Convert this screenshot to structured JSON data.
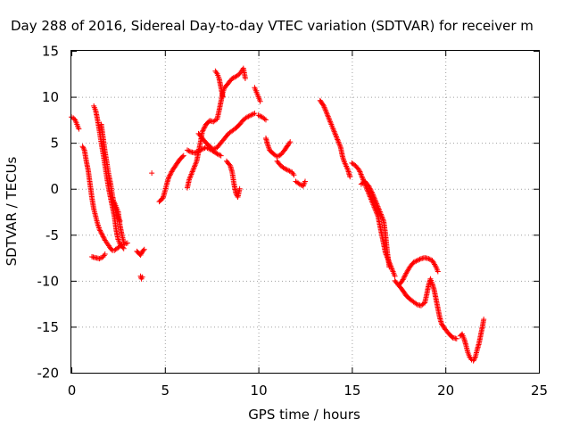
{
  "chart_data": {
    "type": "scatter",
    "title": "Day 288 of 2016, Sidereal Day-to-day VTEC variation (SDTVAR) for receiver m",
    "xlabel": "GPS time / hours",
    "ylabel": "SDTVAR / TECUs",
    "xlim": [
      0,
      25
    ],
    "ylim": [
      -20,
      15
    ],
    "xticks": [
      "0",
      "5",
      "10",
      "15",
      "20",
      "25"
    ],
    "yticks": [
      "15",
      "10",
      "5",
      "0",
      "-5",
      "-10",
      "-15",
      "-20"
    ],
    "grid": true,
    "marker": "+",
    "colors": {
      "series": "#ff0000",
      "grid": "#a0a0a0",
      "axis": "#000000"
    },
    "series_tracks": [
      [
        [
          0.0,
          7.8
        ],
        [
          0.1,
          7.7
        ],
        [
          0.2,
          7.5
        ],
        [
          0.3,
          7.0
        ],
        [
          0.4,
          6.5
        ]
      ],
      [
        [
          0.6,
          4.6
        ],
        [
          0.7,
          4.2
        ],
        [
          0.8,
          3.0
        ],
        [
          0.9,
          2.0
        ],
        [
          1.0,
          0.5
        ],
        [
          1.1,
          -1.0
        ],
        [
          1.2,
          -2.2
        ],
        [
          1.3,
          -3.0
        ],
        [
          1.4,
          -3.8
        ],
        [
          1.5,
          -4.4
        ],
        [
          1.6,
          -4.8
        ],
        [
          1.7,
          -5.2
        ],
        [
          1.8,
          -5.6
        ],
        [
          1.9,
          -5.9
        ],
        [
          2.0,
          -6.2
        ],
        [
          2.1,
          -6.5
        ],
        [
          2.2,
          -6.7
        ],
        [
          2.3,
          -6.7
        ],
        [
          2.5,
          -6.4
        ],
        [
          2.7,
          -6.1
        ],
        [
          3.0,
          -5.9
        ]
      ],
      [
        [
          1.2,
          9.0
        ],
        [
          1.3,
          8.5
        ],
        [
          1.4,
          7.5
        ],
        [
          1.5,
          6.3
        ],
        [
          1.6,
          5.0
        ],
        [
          1.7,
          3.8
        ],
        [
          1.8,
          2.5
        ],
        [
          1.9,
          1.2
        ],
        [
          2.0,
          0.0
        ],
        [
          2.1,
          -1.0
        ],
        [
          2.2,
          -2.0
        ],
        [
          2.3,
          -3.0
        ],
        [
          2.4,
          -4.5
        ],
        [
          2.5,
          -5.5
        ],
        [
          2.6,
          -6.0
        ],
        [
          2.8,
          -6.5
        ]
      ],
      [
        [
          1.1,
          -7.4
        ],
        [
          1.3,
          -7.5
        ],
        [
          1.5,
          -7.6
        ],
        [
          1.7,
          -7.4
        ],
        [
          1.8,
          -7.1
        ]
      ],
      [
        [
          1.6,
          7.0
        ],
        [
          1.7,
          5.5
        ],
        [
          1.8,
          4.0
        ],
        [
          1.9,
          2.8
        ],
        [
          2.0,
          1.5
        ],
        [
          2.1,
          0.5
        ],
        [
          2.2,
          -0.8
        ],
        [
          2.3,
          -1.8
        ],
        [
          2.4,
          -2.6
        ],
        [
          2.5,
          -3.2
        ],
        [
          2.6,
          -3.5
        ]
      ],
      [
        [
          2.3,
          -1.5
        ],
        [
          2.4,
          -2.0
        ],
        [
          2.5,
          -2.5
        ],
        [
          2.6,
          -4.0
        ],
        [
          2.7,
          -5.0
        ],
        [
          2.8,
          -5.8
        ]
      ],
      [
        [
          3.5,
          -6.8
        ],
        [
          3.6,
          -7.0
        ],
        [
          3.7,
          -7.2
        ],
        [
          3.8,
          -6.8
        ],
        [
          3.9,
          -6.6
        ]
      ],
      [
        [
          3.7,
          -9.5
        ],
        [
          3.75,
          -9.8
        ],
        [
          3.8,
          -9.6
        ]
      ],
      [
        [
          4.3,
          1.7
        ]
      ],
      [
        [
          4.7,
          -1.4
        ],
        [
          4.9,
          -1.0
        ],
        [
          5.0,
          -0.3
        ],
        [
          5.1,
          0.5
        ],
        [
          5.2,
          1.2
        ],
        [
          5.4,
          2.0
        ],
        [
          5.6,
          2.6
        ],
        [
          5.8,
          3.2
        ],
        [
          6.0,
          3.6
        ]
      ],
      [
        [
          6.2,
          4.2
        ],
        [
          6.4,
          4.0
        ],
        [
          6.6,
          3.9
        ],
        [
          6.8,
          4.1
        ],
        [
          7.0,
          4.3
        ],
        [
          7.2,
          4.5
        ],
        [
          7.5,
          4.2
        ],
        [
          7.8,
          3.8
        ],
        [
          8.0,
          3.6
        ]
      ],
      [
        [
          6.2,
          0.1
        ],
        [
          6.3,
          1.0
        ],
        [
          6.5,
          2.0
        ],
        [
          6.7,
          3.0
        ],
        [
          6.8,
          4.0
        ],
        [
          6.9,
          5.0
        ],
        [
          7.0,
          6.2
        ],
        [
          7.2,
          7.0
        ],
        [
          7.4,
          7.4
        ],
        [
          7.6,
          7.3
        ],
        [
          7.8,
          7.6
        ],
        [
          7.9,
          8.5
        ],
        [
          8.0,
          9.5
        ],
        [
          8.1,
          10.5
        ],
        [
          8.2,
          11.0
        ],
        [
          8.4,
          11.5
        ],
        [
          8.6,
          12.0
        ],
        [
          8.8,
          12.2
        ],
        [
          9.0,
          12.5
        ],
        [
          9.1,
          12.8
        ],
        [
          9.2,
          13.1
        ],
        [
          9.3,
          12.0
        ]
      ],
      [
        [
          7.7,
          12.8
        ],
        [
          7.8,
          12.5
        ],
        [
          7.9,
          12.0
        ],
        [
          8.0,
          11.0
        ],
        [
          8.1,
          10.0
        ]
      ],
      [
        [
          6.8,
          6.0
        ],
        [
          7.0,
          5.5
        ],
        [
          7.2,
          5.0
        ],
        [
          7.4,
          4.6
        ],
        [
          7.6,
          4.3
        ],
        [
          7.8,
          4.5
        ],
        [
          8.0,
          5.0
        ],
        [
          8.2,
          5.5
        ],
        [
          8.4,
          6.0
        ],
        [
          8.6,
          6.3
        ],
        [
          8.8,
          6.6
        ],
        [
          9.0,
          7.0
        ],
        [
          9.2,
          7.5
        ],
        [
          9.4,
          7.8
        ],
        [
          9.6,
          8.0
        ],
        [
          9.8,
          8.2
        ]
      ],
      [
        [
          8.3,
          3.0
        ],
        [
          8.5,
          2.5
        ],
        [
          8.6,
          1.8
        ],
        [
          8.7,
          0.5
        ],
        [
          8.8,
          -0.5
        ],
        [
          8.9,
          -0.9
        ],
        [
          9.0,
          0.0
        ]
      ],
      [
        [
          9.8,
          11.0
        ],
        [
          9.9,
          10.5
        ],
        [
          10.0,
          10.0
        ],
        [
          10.1,
          9.5
        ]
      ],
      [
        [
          10.0,
          8.0
        ],
        [
          10.2,
          7.8
        ],
        [
          10.4,
          7.5
        ]
      ],
      [
        [
          10.4,
          5.5
        ],
        [
          10.5,
          4.8
        ],
        [
          10.6,
          4.2
        ],
        [
          10.8,
          3.8
        ],
        [
          11.0,
          3.5
        ],
        [
          11.2,
          3.7
        ],
        [
          11.4,
          4.2
        ],
        [
          11.6,
          4.8
        ],
        [
          11.7,
          5.1
        ]
      ],
      [
        [
          11.0,
          3.0
        ],
        [
          11.2,
          2.5
        ],
        [
          11.4,
          2.2
        ],
        [
          11.6,
          2.0
        ],
        [
          11.8,
          1.8
        ],
        [
          11.9,
          1.5
        ]
      ],
      [
        [
          12.0,
          0.8
        ],
        [
          12.2,
          0.5
        ],
        [
          12.4,
          0.3
        ],
        [
          12.5,
          0.8
        ]
      ],
      [
        [
          13.3,
          9.6
        ],
        [
          13.5,
          9.0
        ],
        [
          13.7,
          8.0
        ],
        [
          13.9,
          7.0
        ],
        [
          14.0,
          6.5
        ],
        [
          14.2,
          5.5
        ],
        [
          14.4,
          4.5
        ],
        [
          14.5,
          3.5
        ],
        [
          14.6,
          2.9
        ],
        [
          14.8,
          2.0
        ],
        [
          14.9,
          1.3
        ]
      ],
      [
        [
          15.0,
          2.8
        ],
        [
          15.2,
          2.5
        ],
        [
          15.4,
          2.0
        ],
        [
          15.6,
          1.0
        ],
        [
          15.8,
          0.0
        ],
        [
          16.0,
          -1.0
        ],
        [
          16.2,
          -2.0
        ],
        [
          16.4,
          -3.0
        ],
        [
          16.5,
          -4.0
        ],
        [
          16.6,
          -5.0
        ],
        [
          16.7,
          -6.0
        ],
        [
          16.8,
          -7.0
        ],
        [
          17.0,
          -8.0
        ],
        [
          17.2,
          -9.0
        ],
        [
          17.3,
          -9.5
        ]
      ],
      [
        [
          15.5,
          0.5
        ],
        [
          15.7,
          0.8
        ],
        [
          15.9,
          0.3
        ],
        [
          16.1,
          -0.5
        ],
        [
          16.3,
          -1.5
        ],
        [
          16.5,
          -2.5
        ],
        [
          16.7,
          -3.5
        ],
        [
          16.8,
          -5.0
        ],
        [
          16.9,
          -7.0
        ],
        [
          17.0,
          -8.5
        ]
      ],
      [
        [
          17.5,
          -10.5
        ],
        [
          17.7,
          -10.0
        ],
        [
          17.9,
          -9.2
        ],
        [
          18.1,
          -8.5
        ],
        [
          18.3,
          -8.0
        ],
        [
          18.5,
          -7.8
        ],
        [
          18.7,
          -7.6
        ],
        [
          18.9,
          -7.5
        ],
        [
          19.1,
          -7.6
        ],
        [
          19.3,
          -7.8
        ],
        [
          19.5,
          -8.5
        ],
        [
          19.6,
          -9.0
        ]
      ],
      [
        [
          17.3,
          -10.0
        ],
        [
          17.5,
          -10.5
        ],
        [
          17.7,
          -11.0
        ],
        [
          17.9,
          -11.6
        ],
        [
          18.1,
          -12.0
        ],
        [
          18.3,
          -12.3
        ],
        [
          18.5,
          -12.6
        ],
        [
          18.7,
          -12.7
        ],
        [
          18.9,
          -12.4
        ],
        [
          19.0,
          -11.5
        ],
        [
          19.1,
          -10.5
        ],
        [
          19.2,
          -9.8
        ],
        [
          19.3,
          -10.3
        ],
        [
          19.4,
          -11.0
        ],
        [
          19.5,
          -12.0
        ],
        [
          19.6,
          -13.0
        ],
        [
          19.7,
          -14.0
        ],
        [
          19.8,
          -14.7
        ],
        [
          20.0,
          -15.3
        ],
        [
          20.2,
          -15.8
        ],
        [
          20.4,
          -16.2
        ],
        [
          20.6,
          -16.3
        ]
      ],
      [
        [
          20.8,
          -16.0
        ],
        [
          20.9,
          -15.8
        ],
        [
          21.0,
          -16.3
        ],
        [
          21.1,
          -17.0
        ],
        [
          21.2,
          -17.8
        ],
        [
          21.3,
          -18.3
        ],
        [
          21.4,
          -18.6
        ],
        [
          21.5,
          -18.7
        ],
        [
          21.6,
          -18.3
        ],
        [
          21.7,
          -17.5
        ],
        [
          21.8,
          -16.8
        ],
        [
          21.9,
          -15.8
        ],
        [
          22.0,
          -14.8
        ],
        [
          22.05,
          -14.2
        ]
      ]
    ]
  }
}
